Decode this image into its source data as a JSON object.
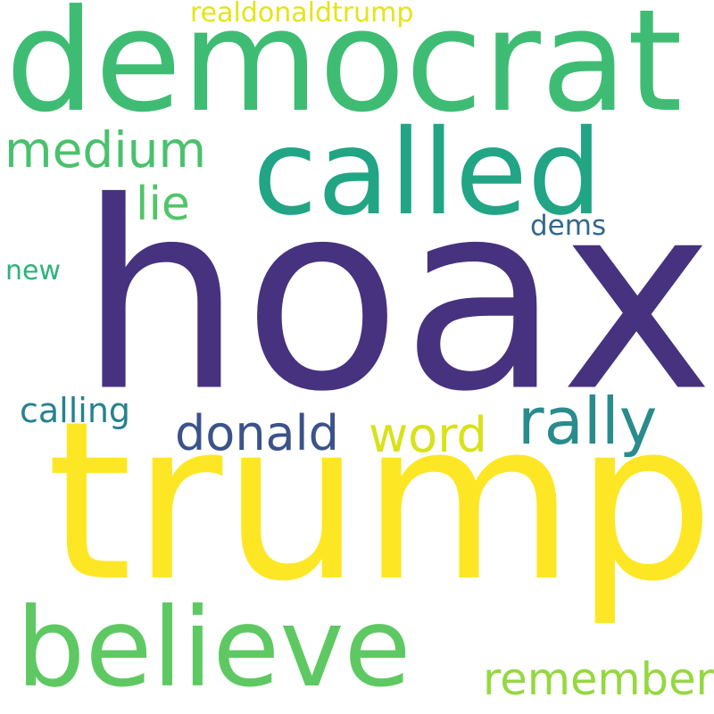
{
  "words": {
    "hoax": {
      "text": "hoax",
      "color": "#46327e"
    },
    "trump": {
      "text": "trump",
      "color": "#fde725"
    },
    "democrat": {
      "text": "democrat",
      "color": "#3fbc73"
    },
    "called": {
      "text": "called",
      "color": "#21a585"
    },
    "believe": {
      "text": "believe",
      "color": "#5ec962"
    },
    "rally": {
      "text": "rally",
      "color": "#2a8b8c"
    },
    "medium": {
      "text": "medium",
      "color": "#4ac16d"
    },
    "donald": {
      "text": "donald",
      "color": "#3b528b"
    },
    "word": {
      "text": "word",
      "color": "#d8e219"
    },
    "remember": {
      "text": "remember",
      "color": "#95d840"
    },
    "lie": {
      "text": "lie",
      "color": "#52c569"
    },
    "calling": {
      "text": "calling",
      "color": "#26828e"
    },
    "realdonaldtrump": {
      "text": "realdonaldtrump",
      "color": "#e5e419"
    },
    "dems": {
      "text": "dems",
      "color": "#31688e"
    },
    "new": {
      "text": "new",
      "color": "#2db27d"
    }
  }
}
